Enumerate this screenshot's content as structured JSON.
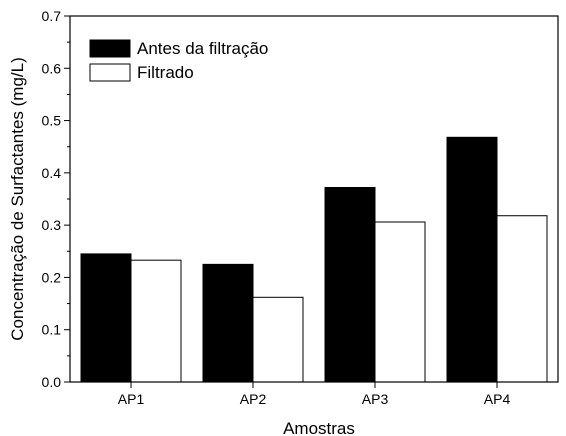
{
  "chart_data": {
    "type": "bar",
    "categories": [
      "AP1",
      "AP2",
      "AP3",
      "AP4"
    ],
    "series": [
      {
        "name": "Antes da filtração",
        "values": [
          0.245,
          0.225,
          0.372,
          0.468
        ],
        "color": "#000000"
      },
      {
        "name": "Filtrado",
        "values": [
          0.233,
          0.162,
          0.306,
          0.318
        ],
        "color": "#ffffff"
      }
    ],
    "xlabel": "Amostras",
    "ylabel": "Concentração de Surfactantes (mg/L)",
    "ylim": [
      0,
      0.7
    ],
    "yticks": [
      "0.0",
      "0.1",
      "0.2",
      "0.3",
      "0.4",
      "0.5",
      "0.6",
      "0.7"
    ],
    "grid": false,
    "legend_position": "top-left"
  }
}
